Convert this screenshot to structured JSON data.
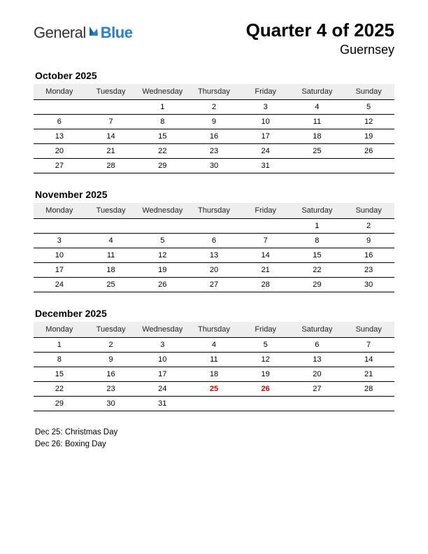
{
  "logo": {
    "part1": "General",
    "part2": "Blue"
  },
  "title": "Quarter 4 of 2025",
  "subtitle": "Guernsey",
  "day_headers": [
    "Monday",
    "Tuesday",
    "Wednesday",
    "Thursday",
    "Friday",
    "Saturday",
    "Sunday"
  ],
  "colors": {
    "background": "#ffffff",
    "text": "#000000",
    "header_bg": "#eeeeee",
    "holiday": "#d40000",
    "logo_gray": "#333333",
    "logo_blue": "#2a7fc9",
    "rule": "#000000"
  },
  "fonts": {
    "family": "Arial",
    "title_size_pt": 20,
    "subtitle_size_pt": 14,
    "month_size_pt": 11,
    "cell_size_pt": 8.5,
    "holiday_list_size_pt": 9
  },
  "months": [
    {
      "name": "October 2025",
      "weeks": [
        [
          "",
          "",
          "1",
          "2",
          "3",
          "4",
          "5"
        ],
        [
          "6",
          "7",
          "8",
          "9",
          "10",
          "11",
          "12"
        ],
        [
          "13",
          "14",
          "15",
          "16",
          "17",
          "18",
          "19"
        ],
        [
          "20",
          "21",
          "22",
          "23",
          "24",
          "25",
          "26"
        ],
        [
          "27",
          "28",
          "29",
          "30",
          "31",
          "",
          ""
        ]
      ],
      "holiday_cells": []
    },
    {
      "name": "November 2025",
      "weeks": [
        [
          "",
          "",
          "",
          "",
          "",
          "1",
          "2"
        ],
        [
          "3",
          "4",
          "5",
          "6",
          "7",
          "8",
          "9"
        ],
        [
          "10",
          "11",
          "12",
          "13",
          "14",
          "15",
          "16"
        ],
        [
          "17",
          "18",
          "19",
          "20",
          "21",
          "22",
          "23"
        ],
        [
          "24",
          "25",
          "26",
          "27",
          "28",
          "29",
          "30"
        ]
      ],
      "holiday_cells": []
    },
    {
      "name": "December 2025",
      "weeks": [
        [
          "1",
          "2",
          "3",
          "4",
          "5",
          "6",
          "7"
        ],
        [
          "8",
          "9",
          "10",
          "11",
          "12",
          "13",
          "14"
        ],
        [
          "15",
          "16",
          "17",
          "18",
          "19",
          "20",
          "21"
        ],
        [
          "22",
          "23",
          "24",
          "25",
          "26",
          "27",
          "28"
        ],
        [
          "29",
          "30",
          "31",
          "",
          "",
          "",
          ""
        ]
      ],
      "holiday_cells": [
        [
          3,
          3
        ],
        [
          3,
          4
        ]
      ]
    }
  ],
  "holiday_list": [
    "Dec 25: Christmas Day",
    "Dec 26: Boxing Day"
  ]
}
